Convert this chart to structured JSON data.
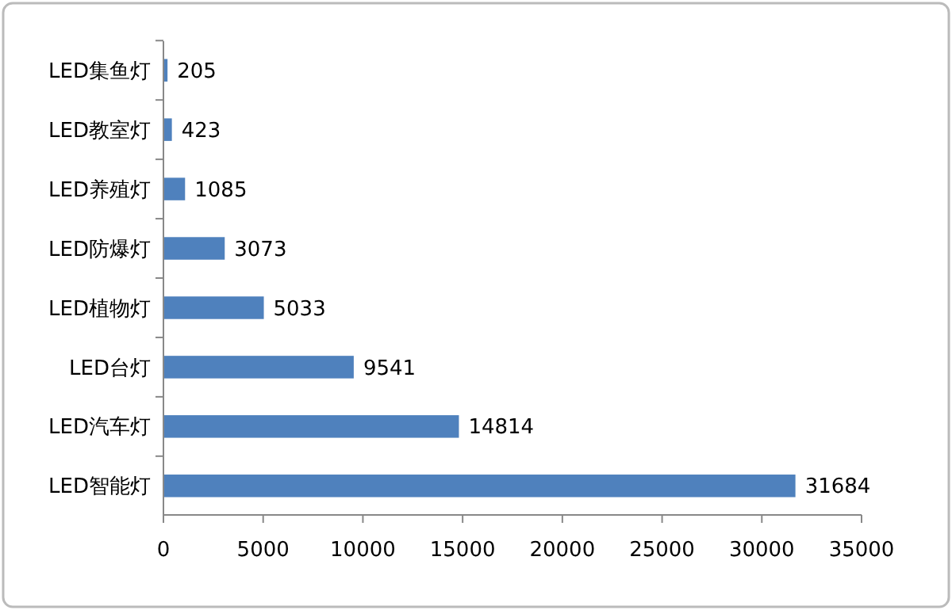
{
  "chart_data": {
    "type": "bar",
    "orientation": "horizontal",
    "categories": [
      "LED集鱼灯",
      "LED教室灯",
      "LED养殖灯",
      "LED防爆灯",
      "LED植物灯",
      "LED台灯",
      "LED汽车灯",
      "LED智能灯"
    ],
    "values": [
      205,
      423,
      1085,
      3073,
      5033,
      9541,
      14814,
      31684
    ],
    "color": "#4f81bd",
    "xlim": [
      0,
      35000
    ],
    "xticks": [
      0,
      5000,
      10000,
      15000,
      20000,
      25000,
      30000,
      35000
    ],
    "data_labels": true,
    "grid": false
  }
}
